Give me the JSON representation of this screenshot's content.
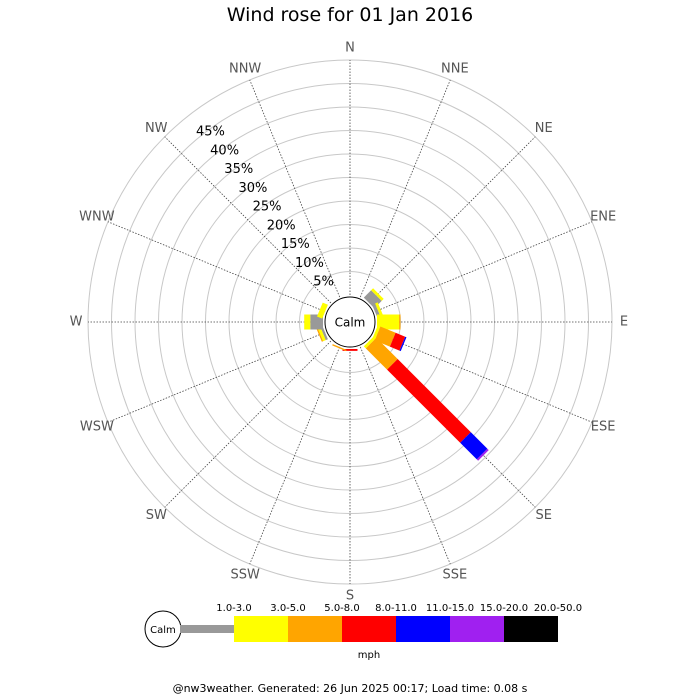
{
  "chart_data": {
    "type": "windrose",
    "title": "Wind rose for 01 Jan 2016",
    "directions": [
      "N",
      "NNE",
      "NE",
      "ENE",
      "E",
      "ESE",
      "SE",
      "SSE",
      "S",
      "SSW",
      "SW",
      "WSW",
      "W",
      "WNW",
      "NW",
      "NNW"
    ],
    "ring_labels": [
      "5%",
      "10%",
      "15%",
      "20%",
      "25%",
      "30%",
      "35%",
      "40%",
      "45%"
    ],
    "rmax_percent": 50,
    "calm_label": "Calm",
    "unit": "mph",
    "bins": [
      {
        "label": "1.0-3.0",
        "color": "#999999"
      },
      {
        "label": "3.0-5.0",
        "color": "#ffff00"
      },
      {
        "label": "5.0-8.0",
        "color": "#ffa500"
      },
      {
        "label": "8.0-11.0",
        "color": "#ff0000"
      },
      {
        "label": "11.0-15.0",
        "color": "#0000ff"
      },
      {
        "label": "15.0-20.0",
        "color": "#a020f0"
      },
      {
        "label": "20.0-50.0",
        "color": "#000000"
      }
    ],
    "frequencies": [
      {
        "dir": "N",
        "values": [
          0,
          0,
          0,
          0,
          0,
          0,
          0
        ]
      },
      {
        "dir": "NNE",
        "values": [
          0,
          0,
          0,
          0,
          0,
          0,
          0
        ]
      },
      {
        "dir": "NE",
        "values": [
          2.2,
          0.6,
          0,
          0,
          0,
          0,
          0
        ]
      },
      {
        "dir": "ENE",
        "values": [
          0.7,
          0.6,
          0,
          0,
          0,
          0,
          0
        ]
      },
      {
        "dir": "E",
        "values": [
          0,
          4.7,
          0.3,
          0,
          0,
          0,
          0
        ]
      },
      {
        "dir": "ESE",
        "values": [
          0,
          0.6,
          3.5,
          2.2,
          0.3,
          0,
          0
        ]
      },
      {
        "dir": "SE",
        "values": [
          0,
          0.6,
          6.4,
          22.0,
          5.0,
          0.4,
          0
        ]
      },
      {
        "dir": "SSE",
        "values": [
          0,
          0,
          0,
          0,
          0,
          0,
          0
        ]
      },
      {
        "dir": "S",
        "values": [
          0,
          0,
          0,
          0.4,
          0,
          0,
          0
        ]
      },
      {
        "dir": "SSW",
        "values": [
          0,
          0,
          0.3,
          0,
          0,
          0,
          0
        ]
      },
      {
        "dir": "SW",
        "values": [
          0,
          0,
          0,
          0,
          0,
          0,
          0
        ]
      },
      {
        "dir": "WSW",
        "values": [
          0.5,
          0.6,
          0.3,
          0,
          0,
          0,
          0
        ]
      },
      {
        "dir": "W",
        "values": [
          2.7,
          1.3,
          0,
          0,
          0,
          0,
          0
        ]
      },
      {
        "dir": "WNW",
        "values": [
          0,
          1.2,
          0,
          0,
          0,
          0,
          0
        ]
      },
      {
        "dir": "NW",
        "values": [
          0,
          0,
          0,
          0,
          0,
          0,
          0
        ]
      },
      {
        "dir": "NNW",
        "values": [
          0,
          0,
          0,
          0,
          0,
          0,
          0
        ]
      }
    ],
    "grid": true
  },
  "footer": "@nw3weather. Generated: 26 Jun 2025 00:17; Load time: 0.08 s"
}
